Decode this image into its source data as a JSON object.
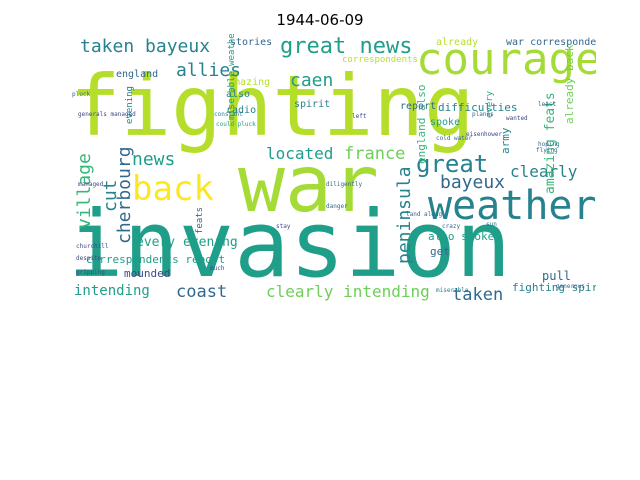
{
  "title": "1944-06-09",
  "palette": [
    "#b5de2b",
    "#a5db36",
    "#6ece58",
    "#35b779",
    "#1f9e89",
    "#26828e",
    "#31688e",
    "#3e4989",
    "#482878",
    "#440154",
    "#fde725",
    "#c8e020"
  ],
  "words": [
    {
      "text": "invasion",
      "c": 4
    },
    {
      "text": "fighting",
      "c": 0
    },
    {
      "text": "war",
      "c": 1
    },
    {
      "text": "courage",
      "c": 1
    },
    {
      "text": "weather",
      "c": 5
    },
    {
      "text": "back",
      "c": 10
    },
    {
      "text": "great news",
      "c": 4
    },
    {
      "text": "taken bayeux",
      "c": 5
    },
    {
      "text": "allies",
      "c": 5
    },
    {
      "text": "news",
      "c": 4
    },
    {
      "text": "great",
      "c": 5
    },
    {
      "text": "caen",
      "c": 4
    },
    {
      "text": "bayeux",
      "c": 6
    },
    {
      "text": "france",
      "c": 2
    },
    {
      "text": "located",
      "c": 4
    },
    {
      "text": "clearly",
      "c": 5
    },
    {
      "text": "village",
      "c": 3
    },
    {
      "text": "cut",
      "c": 5
    },
    {
      "text": "cherbourg",
      "c": 6
    },
    {
      "text": "peninsula",
      "c": 5
    },
    {
      "text": "coast",
      "c": 6
    },
    {
      "text": "clearly intending",
      "c": 2
    },
    {
      "text": "intending",
      "c": 4
    },
    {
      "text": "taken",
      "c": 6
    },
    {
      "text": "every evening",
      "c": 4
    },
    {
      "text": "correspondents report",
      "c": 4
    },
    {
      "text": "mounded",
      "c": 7
    },
    {
      "text": "england also",
      "c": 3
    },
    {
      "text": "army",
      "c": 5
    },
    {
      "text": "amazing feats",
      "c": 3
    },
    {
      "text": "already back",
      "c": 2
    },
    {
      "text": "fighting spirit",
      "c": 5
    },
    {
      "text": "pull",
      "c": 6
    },
    {
      "text": "also spoke",
      "c": 4
    },
    {
      "text": "war correspondents",
      "c": 6
    },
    {
      "text": "already",
      "c": 0
    },
    {
      "text": "difficulties",
      "c": 5
    },
    {
      "text": "stories",
      "c": 6
    },
    {
      "text": "spirit",
      "c": 5
    },
    {
      "text": "spoke",
      "c": 4
    },
    {
      "text": "report",
      "c": 6
    },
    {
      "text": "get",
      "c": 6
    },
    {
      "text": "england",
      "c": 6
    },
    {
      "text": "amazing",
      "c": 0
    },
    {
      "text": "also",
      "c": 5
    },
    {
      "text": "radio",
      "c": 5
    },
    {
      "text": "evening",
      "c": 5
    },
    {
      "text": "miserable weather",
      "c": 4
    },
    {
      "text": "every",
      "c": 4
    },
    {
      "text": "correspondents",
      "c": 0
    },
    {
      "text": "feats",
      "c": 6
    },
    {
      "text": "diligently",
      "c": 6
    },
    {
      "text": "generals managed",
      "c": 7
    },
    {
      "text": "churchill",
      "c": 7
    },
    {
      "text": "pluck",
      "c": 6
    },
    {
      "text": "constant",
      "c": 5
    },
    {
      "text": "could pluck",
      "c": 4
    },
    {
      "text": "cold water",
      "c": 6
    },
    {
      "text": "left",
      "c": 7
    },
    {
      "text": "planes",
      "c": 6
    },
    {
      "text": "least",
      "c": 6
    },
    {
      "text": "wanted",
      "c": 7
    },
    {
      "text": "hoping",
      "c": 6
    },
    {
      "text": "danger",
      "c": 6
    },
    {
      "text": "generous",
      "c": 6
    },
    {
      "text": "flying",
      "c": 6
    },
    {
      "text": "miserable",
      "c": 5
    },
    {
      "text": "land along",
      "c": 6
    },
    {
      "text": "much",
      "c": 7
    },
    {
      "text": "crazy",
      "c": 6
    },
    {
      "text": "despite",
      "c": 7
    },
    {
      "text": "gripping",
      "c": 7
    },
    {
      "text": "managed",
      "c": 7
    },
    {
      "text": "stay",
      "c": 7
    },
    {
      "text": "eisenhower",
      "c": 7
    },
    {
      "text": "sun",
      "c": 6
    }
  ]
}
